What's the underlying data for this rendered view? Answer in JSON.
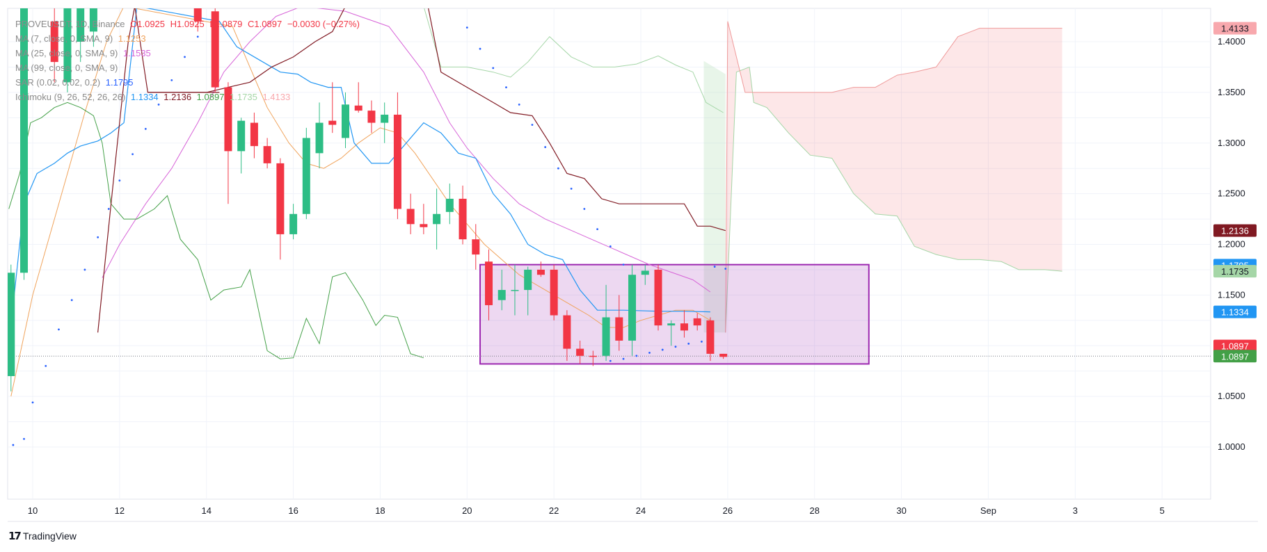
{
  "legend": {
    "main": {
      "name": "PROVEUSDT, 1D, Binance",
      "o": "O1.0925",
      "h": "H1.0925",
      "l": "L1.0879",
      "c": "C1.0897",
      "chg": "−0.0030 (−0.27%)"
    },
    "ma7": {
      "name": "MA (7, close, 0, SMA, 9)",
      "value": "1.1253"
    },
    "ma25": {
      "name": "MA (25, close, 0, SMA, 9)",
      "value": "1.1535"
    },
    "ma99": {
      "name": "MA (99, close, 0, SMA, 9)",
      "value": ""
    },
    "sar": {
      "name": "SAR (0.02, 0.02, 0.2)",
      "value": "1.1795"
    },
    "ichimoku": {
      "name": "Ichimoku (9, 26, 52, 26, 26)",
      "v1": "1.1334",
      "v2": "1.2136",
      "v3": "1.0897",
      "v4": "1.1735",
      "v5": "1.4133"
    }
  },
  "brand": {
    "name": "TradingView"
  },
  "colors": {
    "up": "#26a69a",
    "upCandle": "#2dbd85",
    "down": "#f23645",
    "ma7": "#f0a35b",
    "ma25": "#d764d8",
    "sar": "#2962ff",
    "tenkan": "#2196f3",
    "kijun": "#801922",
    "lagging": "#43a047",
    "leadA": "#a5d6a7",
    "leadB": "#ef9a9a",
    "box": "#9c27b0"
  },
  "chart_data": {
    "type": "candlestick",
    "x_axis_labels": [
      "10",
      "12",
      "14",
      "16",
      "18",
      "20",
      "22",
      "24",
      "26",
      "28",
      "30",
      "Sep",
      "3",
      "5"
    ],
    "y_axis_labels": [
      "1.4000",
      "1.3500",
      "1.3000",
      "1.2500",
      "1.2000",
      "1.1500",
      "1.1000",
      "1.0500",
      "1.0000"
    ],
    "y_axis_values": [
      1.4,
      1.35,
      1.3,
      1.25,
      1.2,
      1.15,
      1.1,
      1.05,
      1.0
    ],
    "ylim": [
      0.95,
      1.435
    ],
    "xlim_day": [
      9.45,
      37.2
    ],
    "candles": [
      {
        "d": 9.5,
        "o": 1.07,
        "h": 1.18,
        "l": 1.055,
        "c": 1.172
      },
      {
        "d": 9.8,
        "o": 1.172,
        "h": 1.435,
        "l": 1.165,
        "c": 1.435
      },
      {
        "d": 10.5,
        "o": 1.42,
        "h": 1.435,
        "l": 1.36,
        "c": 1.38
      },
      {
        "d": 10.8,
        "o": 1.36,
        "h": 1.435,
        "l": 1.35,
        "c": 1.435
      },
      {
        "d": 11.1,
        "o": 1.4,
        "h": 1.435,
        "l": 1.38,
        "c": 1.435
      },
      {
        "d": 11.4,
        "o": 1.41,
        "h": 1.435,
        "l": 1.395,
        "c": 1.435
      },
      {
        "d": 13.8,
        "o": 1.435,
        "h": 1.435,
        "l": 1.41,
        "c": 1.42
      },
      {
        "d": 14.2,
        "o": 1.43,
        "h": 1.435,
        "l": 1.35,
        "c": 1.355
      },
      {
        "d": 14.5,
        "o": 1.355,
        "h": 1.36,
        "l": 1.24,
        "c": 1.292
      },
      {
        "d": 14.8,
        "o": 1.292,
        "h": 1.325,
        "l": 1.27,
        "c": 1.322
      },
      {
        "d": 15.1,
        "o": 1.32,
        "h": 1.33,
        "l": 1.285,
        "c": 1.297
      },
      {
        "d": 15.4,
        "o": 1.297,
        "h": 1.305,
        "l": 1.275,
        "c": 1.28
      },
      {
        "d": 15.7,
        "o": 1.28,
        "h": 1.285,
        "l": 1.185,
        "c": 1.21
      },
      {
        "d": 16.0,
        "o": 1.21,
        "h": 1.24,
        "l": 1.205,
        "c": 1.23
      },
      {
        "d": 16.3,
        "o": 1.23,
        "h": 1.315,
        "l": 1.225,
        "c": 1.305
      },
      {
        "d": 16.6,
        "o": 1.29,
        "h": 1.34,
        "l": 1.275,
        "c": 1.32
      },
      {
        "d": 16.9,
        "o": 1.322,
        "h": 1.36,
        "l": 1.31,
        "c": 1.318
      },
      {
        "d": 17.2,
        "o": 1.305,
        "h": 1.35,
        "l": 1.295,
        "c": 1.338
      },
      {
        "d": 17.5,
        "o": 1.337,
        "h": 1.36,
        "l": 1.33,
        "c": 1.332
      },
      {
        "d": 17.8,
        "o": 1.332,
        "h": 1.342,
        "l": 1.31,
        "c": 1.32
      },
      {
        "d": 18.1,
        "o": 1.32,
        "h": 1.34,
        "l": 1.3,
        "c": 1.328
      },
      {
        "d": 18.4,
        "o": 1.328,
        "h": 1.35,
        "l": 1.225,
        "c": 1.235
      },
      {
        "d": 18.7,
        "o": 1.235,
        "h": 1.25,
        "l": 1.21,
        "c": 1.22
      },
      {
        "d": 19.0,
        "o": 1.22,
        "h": 1.24,
        "l": 1.21,
        "c": 1.217
      },
      {
        "d": 19.3,
        "o": 1.22,
        "h": 1.255,
        "l": 1.195,
        "c": 1.23
      },
      {
        "d": 19.6,
        "o": 1.232,
        "h": 1.26,
        "l": 1.22,
        "c": 1.245
      },
      {
        "d": 19.9,
        "o": 1.245,
        "h": 1.258,
        "l": 1.2,
        "c": 1.205
      },
      {
        "d": 20.2,
        "o": 1.205,
        "h": 1.22,
        "l": 1.175,
        "c": 1.19
      },
      {
        "d": 20.5,
        "o": 1.183,
        "h": 1.195,
        "l": 1.125,
        "c": 1.14
      },
      {
        "d": 20.8,
        "o": 1.145,
        "h": 1.175,
        "l": 1.135,
        "c": 1.155
      },
      {
        "d": 21.1,
        "o": 1.155,
        "h": 1.18,
        "l": 1.13,
        "c": 1.155
      },
      {
        "d": 21.4,
        "o": 1.155,
        "h": 1.178,
        "l": 1.13,
        "c": 1.175
      },
      {
        "d": 21.7,
        "o": 1.175,
        "h": 1.183,
        "l": 1.168,
        "c": 1.17
      },
      {
        "d": 22.0,
        "o": 1.175,
        "h": 1.18,
        "l": 1.125,
        "c": 1.13
      },
      {
        "d": 22.3,
        "o": 1.13,
        "h": 1.135,
        "l": 1.085,
        "c": 1.097
      },
      {
        "d": 22.6,
        "o": 1.097,
        "h": 1.105,
        "l": 1.082,
        "c": 1.09
      },
      {
        "d": 22.9,
        "o": 1.09,
        "h": 1.095,
        "l": 1.08,
        "c": 1.089
      },
      {
        "d": 23.2,
        "o": 1.09,
        "h": 1.16,
        "l": 1.085,
        "c": 1.128
      },
      {
        "d": 23.5,
        "o": 1.128,
        "h": 1.15,
        "l": 1.095,
        "c": 1.105
      },
      {
        "d": 23.8,
        "o": 1.105,
        "h": 1.18,
        "l": 1.09,
        "c": 1.17
      },
      {
        "d": 24.1,
        "o": 1.17,
        "h": 1.18,
        "l": 1.16,
        "c": 1.174
      },
      {
        "d": 24.4,
        "o": 1.175,
        "h": 1.18,
        "l": 1.115,
        "c": 1.12
      },
      {
        "d": 24.7,
        "o": 1.12,
        "h": 1.125,
        "l": 1.1,
        "c": 1.122
      },
      {
        "d": 25.0,
        "o": 1.122,
        "h": 1.135,
        "l": 1.108,
        "c": 1.115
      },
      {
        "d": 25.3,
        "o": 1.127,
        "h": 1.132,
        "l": 1.115,
        "c": 1.12
      },
      {
        "d": 25.6,
        "o": 1.125,
        "h": 1.128,
        "l": 1.085,
        "c": 1.092
      },
      {
        "d": 25.9,
        "o": 1.092,
        "h": 1.092,
        "l": 1.087,
        "c": 1.089
      }
    ],
    "ma7": [
      [
        9.5,
        1.05
      ],
      [
        10.0,
        1.15
      ],
      [
        10.6,
        1.24
      ],
      [
        11.2,
        1.33
      ],
      [
        11.7,
        1.4
      ],
      [
        12.1,
        1.435
      ],
      [
        14.6,
        1.415
      ],
      [
        15.0,
        1.375
      ],
      [
        15.4,
        1.335
      ],
      [
        15.9,
        1.3
      ],
      [
        16.3,
        1.28
      ],
      [
        16.7,
        1.275
      ],
      [
        17.1,
        1.285
      ],
      [
        17.5,
        1.3
      ],
      [
        18.0,
        1.315
      ],
      [
        18.4,
        1.31
      ],
      [
        18.8,
        1.29
      ],
      [
        19.2,
        1.265
      ],
      [
        19.6,
        1.24
      ],
      [
        20.0,
        1.22
      ],
      [
        20.4,
        1.2
      ],
      [
        20.8,
        1.185
      ],
      [
        21.2,
        1.17
      ],
      [
        21.6,
        1.16
      ],
      [
        22.0,
        1.15
      ],
      [
        22.4,
        1.14
      ],
      [
        22.8,
        1.13
      ],
      [
        23.2,
        1.118
      ],
      [
        23.6,
        1.118
      ],
      [
        24.0,
        1.125
      ],
      [
        24.4,
        1.13
      ],
      [
        24.8,
        1.135
      ],
      [
        25.2,
        1.135
      ],
      [
        25.6,
        1.125
      ]
    ],
    "ma25": [
      [
        11.6,
        1.167
      ],
      [
        12.0,
        1.2
      ],
      [
        12.6,
        1.24
      ],
      [
        13.2,
        1.275
      ],
      [
        13.8,
        1.32
      ],
      [
        14.4,
        1.37
      ],
      [
        15.0,
        1.4
      ],
      [
        15.6,
        1.425
      ],
      [
        16.2,
        1.435
      ],
      [
        17.2,
        1.43
      ],
      [
        18.2,
        1.415
      ],
      [
        19.0,
        1.37
      ],
      [
        19.6,
        1.32
      ],
      [
        20.0,
        1.295
      ],
      [
        20.6,
        1.265
      ],
      [
        21.2,
        1.24
      ],
      [
        21.8,
        1.225
      ],
      [
        22.6,
        1.21
      ],
      [
        23.4,
        1.195
      ],
      [
        24.2,
        1.18
      ],
      [
        25.2,
        1.165
      ],
      [
        25.6,
        1.153
      ]
    ],
    "sar": [
      [
        9.55,
        1.002
      ],
      [
        9.8,
        1.008
      ],
      [
        10.0,
        1.044
      ],
      [
        10.3,
        1.08
      ],
      [
        10.6,
        1.116
      ],
      [
        10.9,
        1.145
      ],
      [
        11.2,
        1.175
      ],
      [
        11.5,
        1.207
      ],
      [
        11.75,
        1.235
      ],
      [
        12.0,
        1.263
      ],
      [
        12.3,
        1.289
      ],
      [
        12.6,
        1.314
      ],
      [
        12.9,
        1.338
      ],
      [
        13.2,
        1.362
      ],
      [
        13.5,
        1.385
      ],
      [
        13.8,
        1.405
      ],
      [
        20.0,
        1.414
      ],
      [
        20.3,
        1.393
      ],
      [
        20.6,
        1.374
      ],
      [
        20.9,
        1.355
      ],
      [
        21.2,
        1.338
      ],
      [
        21.5,
        1.318
      ],
      [
        21.8,
        1.296
      ],
      [
        22.1,
        1.275
      ],
      [
        22.4,
        1.255
      ],
      [
        22.7,
        1.235
      ],
      [
        23.0,
        1.215
      ],
      [
        23.3,
        1.198
      ],
      [
        23.6,
        1.18
      ],
      [
        23.3,
        1.085
      ],
      [
        23.6,
        1.087
      ],
      [
        23.9,
        1.09
      ],
      [
        24.2,
        1.093
      ],
      [
        24.5,
        1.096
      ],
      [
        24.8,
        1.099
      ],
      [
        25.1,
        1.102
      ],
      [
        25.4,
        1.104
      ],
      [
        25.7,
        1.178
      ],
      [
        25.95,
        1.176
      ]
    ],
    "tenkan": [
      [
        9.5,
        1.12
      ],
      [
        9.8,
        1.24
      ],
      [
        10.1,
        1.27
      ],
      [
        10.5,
        1.28
      ],
      [
        10.8,
        1.29
      ],
      [
        11.1,
        1.297
      ],
      [
        11.5,
        1.302
      ],
      [
        11.8,
        1.31
      ],
      [
        12.1,
        1.32
      ],
      [
        12.4,
        1.435
      ],
      [
        14.3,
        1.42
      ],
      [
        14.7,
        1.395
      ],
      [
        15.3,
        1.38
      ],
      [
        15.7,
        1.37
      ],
      [
        16.1,
        1.368
      ],
      [
        16.4,
        1.36
      ],
      [
        16.8,
        1.355
      ],
      [
        17.1,
        1.355
      ],
      [
        17.4,
        1.3
      ],
      [
        17.8,
        1.28
      ],
      [
        18.2,
        1.28
      ],
      [
        18.6,
        1.3
      ],
      [
        19.0,
        1.32
      ],
      [
        19.4,
        1.31
      ],
      [
        19.8,
        1.29
      ],
      [
        20.2,
        1.285
      ],
      [
        20.6,
        1.25
      ],
      [
        21.0,
        1.23
      ],
      [
        21.4,
        1.2
      ],
      [
        21.8,
        1.19
      ],
      [
        22.2,
        1.185
      ],
      [
        22.6,
        1.155
      ],
      [
        23.0,
        1.135
      ],
      [
        23.6,
        1.135
      ],
      [
        24.4,
        1.134
      ],
      [
        25.0,
        1.134
      ],
      [
        25.6,
        1.1334
      ]
    ],
    "kijun": [
      [
        17.5,
        1.355
      ],
      [
        17.8,
        1.4
      ],
      [
        18.1,
        1.435
      ],
      [
        13.0,
        1.435
      ],
      [
        12.6,
        1.37
      ],
      [
        12.4,
        1.355
      ],
      [
        12.4,
        1.355
      ],
      [
        12.2,
        1.33
      ],
      [
        11.9,
        1.28
      ],
      [
        11.6,
        1.15
      ],
      [
        11.5,
        1.113
      ]
    ],
    "kijun_main": [
      [
        11.5,
        1.113
      ],
      [
        11.9,
        1.28
      ],
      [
        12.2,
        1.4
      ],
      [
        12.35,
        1.435
      ],
      [
        12.65,
        1.35
      ],
      [
        14.0,
        1.35
      ],
      [
        14.5,
        1.355
      ],
      [
        15.0,
        1.36
      ],
      [
        15.5,
        1.375
      ],
      [
        16.0,
        1.385
      ],
      [
        16.5,
        1.4
      ],
      [
        16.9,
        1.41
      ],
      [
        17.2,
        1.435
      ],
      [
        19.1,
        1.435
      ],
      [
        19.4,
        1.37
      ],
      [
        20.0,
        1.355
      ],
      [
        20.6,
        1.34
      ],
      [
        21.0,
        1.33
      ],
      [
        21.5,
        1.327
      ],
      [
        21.9,
        1.3
      ],
      [
        22.3,
        1.27
      ],
      [
        22.7,
        1.265
      ],
      [
        23.1,
        1.245
      ],
      [
        23.5,
        1.24
      ],
      [
        24.0,
        1.24
      ],
      [
        24.5,
        1.24
      ],
      [
        25.0,
        1.24
      ],
      [
        25.3,
        1.218
      ],
      [
        25.6,
        1.218
      ],
      [
        25.95,
        1.2136
      ]
    ],
    "lagging": [
      [
        9.45,
        1.235
      ],
      [
        9.7,
        1.27
      ],
      [
        9.95,
        1.32
      ],
      [
        10.2,
        1.325
      ],
      [
        10.5,
        1.335
      ],
      [
        10.8,
        1.34
      ],
      [
        11.1,
        1.335
      ],
      [
        11.4,
        1.327
      ],
      [
        11.6,
        1.3
      ],
      [
        11.8,
        1.24
      ],
      [
        12.1,
        1.225
      ],
      [
        12.4,
        1.225
      ],
      [
        12.8,
        1.235
      ],
      [
        13.1,
        1.248
      ],
      [
        13.4,
        1.205
      ],
      [
        13.8,
        1.185
      ],
      [
        14.1,
        1.145
      ],
      [
        14.4,
        1.155
      ],
      [
        14.8,
        1.158
      ],
      [
        15.0,
        1.175
      ],
      [
        15.4,
        1.095
      ],
      [
        15.7,
        1.087
      ],
      [
        16.0,
        1.088
      ],
      [
        16.3,
        1.127
      ],
      [
        16.6,
        1.102
      ],
      [
        16.9,
        1.168
      ],
      [
        17.2,
        1.172
      ],
      [
        17.6,
        1.145
      ],
      [
        17.9,
        1.12
      ],
      [
        18.1,
        1.13
      ],
      [
        18.4,
        1.128
      ],
      [
        18.7,
        1.092
      ],
      [
        19.0,
        1.088
      ]
    ],
    "lead_a": [
      [
        25.95,
        1.113
      ],
      [
        26.2,
        1.37
      ],
      [
        26.5,
        1.375
      ],
      [
        26.6,
        1.34
      ],
      [
        26.9,
        1.335
      ],
      [
        27.4,
        1.31
      ],
      [
        27.9,
        1.288
      ],
      [
        28.4,
        1.285
      ],
      [
        28.9,
        1.25
      ],
      [
        29.4,
        1.23
      ],
      [
        29.9,
        1.228
      ],
      [
        30.3,
        1.198
      ],
      [
        30.8,
        1.19
      ],
      [
        31.3,
        1.185
      ],
      [
        31.8,
        1.185
      ],
      [
        32.3,
        1.183
      ],
      [
        32.7,
        1.175
      ],
      [
        33.3,
        1.175
      ],
      [
        33.7,
        1.1735
      ]
    ],
    "lead_b": [
      [
        25.95,
        1.113
      ],
      [
        26.0,
        1.42
      ],
      [
        26.4,
        1.35
      ],
      [
        26.9,
        1.35
      ],
      [
        27.4,
        1.35
      ],
      [
        27.9,
        1.35
      ],
      [
        28.4,
        1.35
      ],
      [
        28.9,
        1.355
      ],
      [
        29.4,
        1.355
      ],
      [
        29.9,
        1.367
      ],
      [
        30.3,
        1.37
      ],
      [
        30.8,
        1.375
      ],
      [
        31.3,
        1.405
      ],
      [
        31.8,
        1.4133
      ],
      [
        33.7,
        1.4133
      ]
    ],
    "lead_a_past": [
      [
        19.0,
        1.435
      ],
      [
        19.4,
        1.375
      ],
      [
        20.0,
        1.375
      ],
      [
        20.6,
        1.37
      ],
      [
        21.0,
        1.365
      ],
      [
        21.4,
        1.38
      ],
      [
        21.9,
        1.405
      ],
      [
        22.4,
        1.385
      ],
      [
        22.9,
        1.375
      ],
      [
        23.4,
        1.375
      ],
      [
        23.9,
        1.378
      ],
      [
        24.4,
        1.386
      ],
      [
        24.8,
        1.377
      ],
      [
        25.2,
        1.37
      ],
      [
        25.5,
        1.34
      ],
      [
        25.9,
        1.33
      ]
    ],
    "box": {
      "x1": 20.3,
      "x2": 29.25,
      "y1": 1.18,
      "y2": 1.082
    },
    "last_price_line": 1.0897,
    "price_tags": [
      {
        "value": "1.4133",
        "y": 1.4133,
        "bg": "#f8a8ad",
        "fg": "#131722"
      },
      {
        "value": "1.2136",
        "y": 1.2136,
        "bg": "#801922",
        "fg": "#ffffff"
      },
      {
        "value": "1.1795",
        "y": 1.1795,
        "bg": "#2196f3",
        "fg": "#ffffff"
      },
      {
        "value": "1.1735",
        "y": 1.1735,
        "bg": "#a5d6a7",
        "fg": "#131722"
      },
      {
        "value": "1.1334",
        "y": 1.1334,
        "bg": "#2196f3",
        "fg": "#ffffff"
      },
      {
        "value": "1.0897",
        "y": 1.0997,
        "bg": "#f23645",
        "fg": "#ffffff"
      },
      {
        "value": "1.0897",
        "y": 1.0897,
        "bg": "#43a047",
        "fg": "#ffffff"
      }
    ]
  }
}
